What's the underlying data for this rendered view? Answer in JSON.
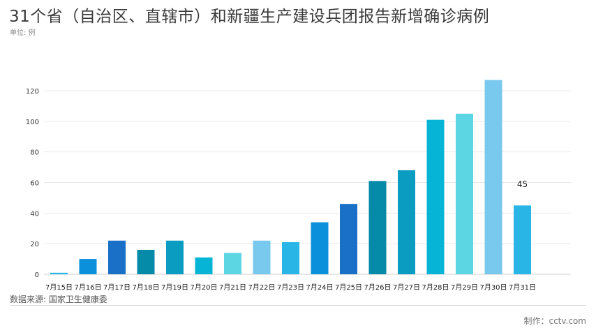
{
  "title": "31个省（自治区、直辖市）和新疆生产建设兵团报告新增确诊病例",
  "unit_label": "单位: 例",
  "source_label": "数据来源: 国家卫生健康委",
  "credit_label": "制作：cctv.com",
  "chart_data": {
    "type": "bar",
    "categories": [
      "7月15日",
      "7月16日",
      "7月17日",
      "7月18日",
      "7月19日",
      "7月20日",
      "7月21日",
      "7月22日",
      "7月23日",
      "7月24日",
      "7月25日",
      "7月26日",
      "7月27日",
      "7月28日",
      "7月29日",
      "7月30日",
      "7月31日"
    ],
    "values": [
      1,
      10,
      22,
      16,
      22,
      11,
      14,
      22,
      21,
      34,
      46,
      61,
      68,
      101,
      105,
      127,
      45
    ],
    "colors": [
      "#29B6E6",
      "#0B90DB",
      "#1A6FC6",
      "#058AA8",
      "#0A9CC1",
      "#06B5D6",
      "#5BD6E2",
      "#79C8EE",
      "#29B6E6",
      "#0B90DB",
      "#1A6FC6",
      "#058AA8",
      "#0A9CC1",
      "#06B5D6",
      "#5BD6E2",
      "#79C8EE",
      "#29B6E6"
    ],
    "yticks": [
      0,
      20,
      40,
      60,
      80,
      100,
      120
    ],
    "ylim": [
      0,
      130
    ],
    "grid": true,
    "annotations": [
      {
        "category": "7月31日",
        "text": "45"
      }
    ]
  }
}
